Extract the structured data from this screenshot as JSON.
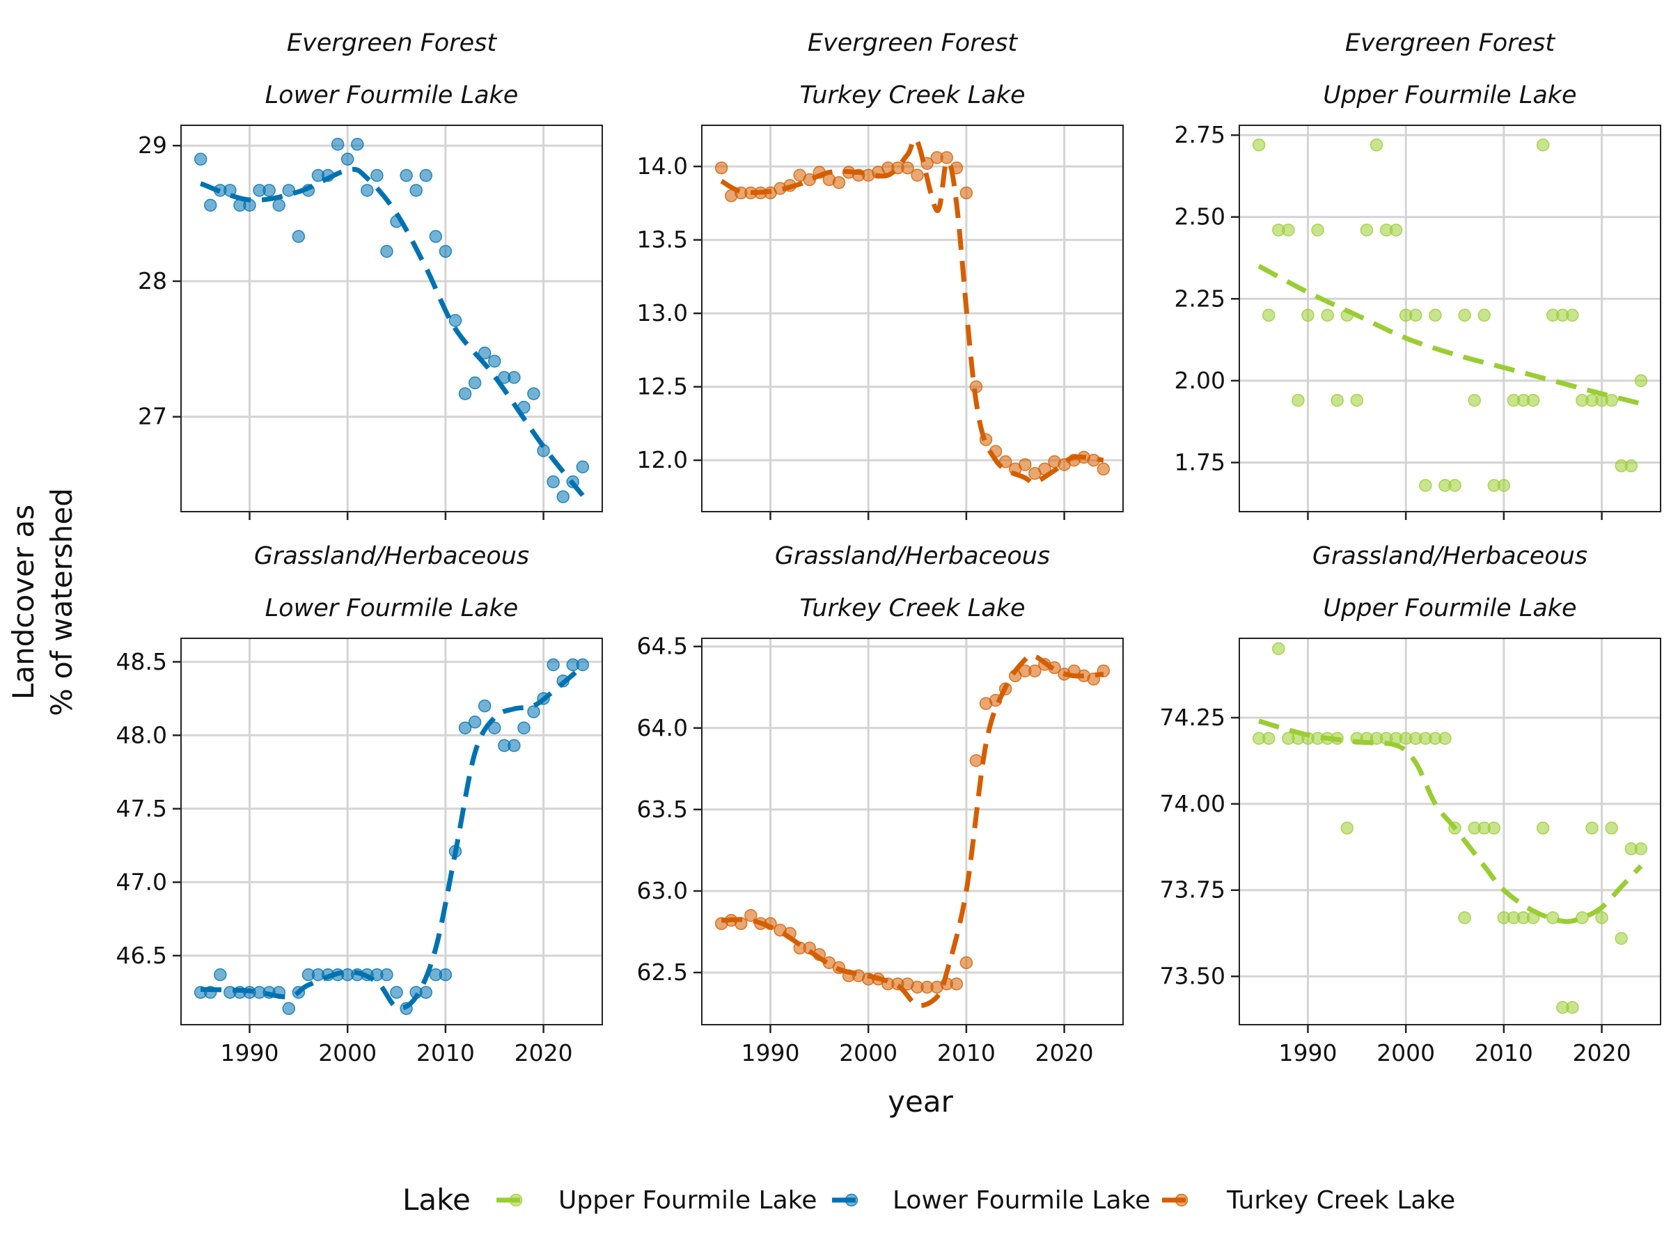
{
  "chart_data": {
    "type": "scatter",
    "layout": "facet grid 2 rows x 3 columns, shared x axis",
    "xlabel": "year",
    "ylabel": [
      "Landcover as",
      "% of watershed"
    ],
    "xlim": [
      1983,
      2026
    ],
    "xticks": [
      1990,
      2000,
      2010,
      2020
    ],
    "grid": true,
    "trend_style": "dashed smooth line",
    "legend": {
      "title": "Lake",
      "position": "bottom",
      "entries": [
        {
          "name": "Upper Fourmile Lake",
          "color": "#9acd32"
        },
        {
          "name": "Lower Fourmile Lake",
          "color": "#0072b2"
        },
        {
          "name": "Turkey Creek Lake",
          "color": "#d55e00"
        }
      ]
    },
    "panels": [
      {
        "landcover": "Evergreen Forest",
        "lake": "Lower Fourmile Lake",
        "color": "#0072b2",
        "ylim": [
          26.3,
          29.15
        ],
        "yticks": [
          27,
          28,
          29
        ],
        "ytick_labels": [
          "27",
          "28",
          "29"
        ],
        "x": [
          1985,
          1986,
          1987,
          1988,
          1989,
          1990,
          1991,
          1992,
          1993,
          1994,
          1995,
          1996,
          1997,
          1998,
          1999,
          2000,
          2001,
          2002,
          2003,
          2004,
          2005,
          2006,
          2007,
          2008,
          2009,
          2010,
          2011,
          2012,
          2013,
          2014,
          2015,
          2016,
          2017,
          2018,
          2019,
          2020,
          2021,
          2022,
          2023,
          2024
        ],
        "y": [
          28.9,
          28.56,
          28.67,
          28.67,
          28.56,
          28.56,
          28.67,
          28.67,
          28.56,
          28.67,
          28.33,
          28.67,
          28.78,
          28.78,
          29.01,
          28.9,
          29.01,
          28.67,
          28.78,
          28.22,
          28.44,
          28.78,
          28.67,
          28.78,
          28.33,
          28.22,
          27.71,
          27.17,
          27.25,
          27.47,
          27.41,
          27.29,
          27.29,
          27.07,
          27.17,
          26.75,
          26.52,
          26.41,
          26.52,
          26.63
        ],
        "trend": [
          [
            1985,
            28.72
          ],
          [
            1990,
            28.6
          ],
          [
            1995,
            28.66
          ],
          [
            2000,
            28.82
          ],
          [
            2002,
            28.76
          ],
          [
            2005,
            28.5
          ],
          [
            2008,
            28.1
          ],
          [
            2011,
            27.65
          ],
          [
            2015,
            27.3
          ],
          [
            2020,
            26.78
          ],
          [
            2024,
            26.42
          ]
        ]
      },
      {
        "landcover": "Evergreen Forest",
        "lake": "Turkey Creek Lake",
        "color": "#d55e00",
        "ylim": [
          11.65,
          14.28
        ],
        "yticks": [
          12.0,
          12.5,
          13.0,
          13.5,
          14.0
        ],
        "ytick_labels": [
          "12.0",
          "12.5",
          "13.0",
          "13.5",
          "14.0"
        ],
        "x": [
          1985,
          1986,
          1987,
          1988,
          1989,
          1990,
          1991,
          1992,
          1993,
          1994,
          1995,
          1996,
          1997,
          1998,
          1999,
          2000,
          2001,
          2002,
          2003,
          2004,
          2005,
          2006,
          2007,
          2008,
          2009,
          2010,
          2011,
          2012,
          2013,
          2014,
          2015,
          2016,
          2017,
          2018,
          2019,
          2020,
          2021,
          2022,
          2023,
          2024
        ],
        "y": [
          13.99,
          13.8,
          13.82,
          13.82,
          13.82,
          13.82,
          13.85,
          13.87,
          13.94,
          13.91,
          13.96,
          13.91,
          13.89,
          13.96,
          13.94,
          13.94,
          13.96,
          13.99,
          13.99,
          13.99,
          13.94,
          14.02,
          14.06,
          14.06,
          13.99,
          13.82,
          12.5,
          12.14,
          12.06,
          11.99,
          11.94,
          11.97,
          11.91,
          11.94,
          11.99,
          11.97,
          12.0,
          12.02,
          12.0,
          11.94
        ],
        "trend": [
          [
            1985,
            13.9
          ],
          [
            1987,
            13.83
          ],
          [
            1990,
            13.83
          ],
          [
            1993,
            13.88
          ],
          [
            1996,
            13.96
          ],
          [
            1999,
            13.96
          ],
          [
            2002,
            13.94
          ],
          [
            2004,
            14.08
          ],
          [
            2005,
            14.17
          ],
          [
            2007,
            13.7
          ],
          [
            2008,
            14.03
          ],
          [
            2009,
            13.75
          ],
          [
            2011,
            12.4
          ],
          [
            2013,
            12.0
          ],
          [
            2016,
            11.88
          ],
          [
            2017,
            11.85
          ],
          [
            2019,
            11.93
          ],
          [
            2021,
            12.02
          ],
          [
            2024,
            12.0
          ]
        ]
      },
      {
        "landcover": "Evergreen Forest",
        "lake": "Upper Fourmile Lake",
        "color": "#9acd32",
        "ylim": [
          1.6,
          2.78
        ],
        "yticks": [
          1.75,
          2.0,
          2.25,
          2.5,
          2.75
        ],
        "ytick_labels": [
          "1.75",
          "2.00",
          "2.25",
          "2.50",
          "2.75"
        ],
        "x": [
          1985,
          1986,
          1987,
          1988,
          1989,
          1990,
          1991,
          1992,
          1993,
          1994,
          1995,
          1996,
          1997,
          1998,
          1999,
          2000,
          2001,
          2002,
          2003,
          2004,
          2005,
          2006,
          2007,
          2008,
          2009,
          2010,
          2011,
          2012,
          2013,
          2014,
          2015,
          2016,
          2017,
          2018,
          2019,
          2020,
          2021,
          2022,
          2023,
          2024
        ],
        "y": [
          2.72,
          2.2,
          2.46,
          2.46,
          1.94,
          2.2,
          2.46,
          2.2,
          1.94,
          2.2,
          1.94,
          2.46,
          2.72,
          2.46,
          2.46,
          2.2,
          2.2,
          1.68,
          2.2,
          1.68,
          1.68,
          2.2,
          1.94,
          2.2,
          1.68,
          1.68,
          1.94,
          1.94,
          1.94,
          2.72,
          2.2,
          2.2,
          2.2,
          1.94,
          1.94,
          1.94,
          1.94,
          1.74,
          1.74,
          2.0
        ],
        "trend": [
          [
            1985,
            2.35
          ],
          [
            1990,
            2.27
          ],
          [
            1995,
            2.2
          ],
          [
            2000,
            2.13
          ],
          [
            2005,
            2.08
          ],
          [
            2010,
            2.04
          ],
          [
            2015,
            2.0
          ],
          [
            2020,
            1.96
          ],
          [
            2024,
            1.93
          ]
        ]
      },
      {
        "landcover": "Grassland/Herbaceous",
        "lake": "Lower Fourmile Lake",
        "color": "#0072b2",
        "ylim": [
          46.03,
          48.66
        ],
        "yticks": [
          46.5,
          47.0,
          47.5,
          48.0,
          48.5
        ],
        "ytick_labels": [
          "46.5",
          "47.0",
          "47.5",
          "48.0",
          "48.5"
        ],
        "x": [
          1985,
          1986,
          1987,
          1988,
          1989,
          1990,
          1991,
          1992,
          1993,
          1994,
          1995,
          1996,
          1997,
          1998,
          1999,
          2000,
          2001,
          2002,
          2003,
          2004,
          2005,
          2006,
          2007,
          2008,
          2009,
          2010,
          2011,
          2012,
          2013,
          2014,
          2015,
          2016,
          2017,
          2018,
          2019,
          2020,
          2021,
          2022,
          2023,
          2024
        ],
        "y": [
          46.25,
          46.25,
          46.37,
          46.25,
          46.25,
          46.25,
          46.25,
          46.25,
          46.25,
          46.14,
          46.25,
          46.37,
          46.37,
          46.37,
          46.37,
          46.37,
          46.37,
          46.37,
          46.37,
          46.37,
          46.25,
          46.14,
          46.25,
          46.25,
          46.37,
          46.37,
          47.21,
          48.05,
          48.09,
          48.2,
          48.05,
          47.93,
          47.93,
          48.05,
          48.16,
          48.25,
          48.48,
          48.37,
          48.48,
          48.48
        ],
        "trend": [
          [
            1985,
            46.27
          ],
          [
            1990,
            46.26
          ],
          [
            1994,
            46.22
          ],
          [
            1996,
            46.3
          ],
          [
            2000,
            46.39
          ],
          [
            2003,
            46.32
          ],
          [
            2005,
            46.15
          ],
          [
            2007,
            46.22
          ],
          [
            2009,
            46.55
          ],
          [
            2011,
            47.2
          ],
          [
            2013,
            47.88
          ],
          [
            2015,
            48.12
          ],
          [
            2017,
            48.18
          ],
          [
            2019,
            48.2
          ],
          [
            2021,
            48.3
          ],
          [
            2024,
            48.47
          ]
        ]
      },
      {
        "landcover": "Grassland/Herbaceous",
        "lake": "Turkey Creek Lake",
        "color": "#d55e00",
        "ylim": [
          62.18,
          64.55
        ],
        "yticks": [
          62.5,
          63.0,
          63.5,
          64.0,
          64.5
        ],
        "ytick_labels": [
          "62.5",
          "63.0",
          "63.5",
          "64.0",
          "64.5"
        ],
        "x": [
          1985,
          1986,
          1987,
          1988,
          1989,
          1990,
          1991,
          1992,
          1993,
          1994,
          1995,
          1996,
          1997,
          1998,
          1999,
          2000,
          2001,
          2002,
          2003,
          2004,
          2005,
          2006,
          2007,
          2008,
          2009,
          2010,
          2011,
          2012,
          2013,
          2014,
          2015,
          2016,
          2017,
          2018,
          2019,
          2020,
          2021,
          2022,
          2023,
          2024
        ],
        "y": [
          62.8,
          62.82,
          62.8,
          62.85,
          62.8,
          62.8,
          62.76,
          62.74,
          62.65,
          62.65,
          62.61,
          62.56,
          62.53,
          62.48,
          62.48,
          62.46,
          62.46,
          62.43,
          62.43,
          62.43,
          62.41,
          62.41,
          62.41,
          62.43,
          62.43,
          62.56,
          63.8,
          64.15,
          64.17,
          64.24,
          64.32,
          64.35,
          64.35,
          64.39,
          64.37,
          64.33,
          64.35,
          64.32,
          64.3,
          64.35
        ],
        "trend": [
          [
            1985,
            62.82
          ],
          [
            1988,
            62.82
          ],
          [
            1991,
            62.75
          ],
          [
            1994,
            62.63
          ],
          [
            1997,
            62.52
          ],
          [
            2000,
            62.48
          ],
          [
            2003,
            62.42
          ],
          [
            2005,
            62.3
          ],
          [
            2007,
            62.35
          ],
          [
            2008,
            62.5
          ],
          [
            2010,
            63.0
          ],
          [
            2012,
            63.9
          ],
          [
            2014,
            64.25
          ],
          [
            2016,
            64.42
          ],
          [
            2017,
            64.44
          ],
          [
            2019,
            64.36
          ],
          [
            2021,
            64.32
          ],
          [
            2024,
            64.33
          ]
        ]
      },
      {
        "landcover": "Grassland/Herbaceous",
        "lake": "Upper Fourmile Lake",
        "color": "#9acd32",
        "ylim": [
          73.36,
          74.48
        ],
        "yticks": [
          73.5,
          73.75,
          74.0,
          74.25
        ],
        "ytick_labels": [
          "73.50",
          "73.75",
          "74.00",
          "74.25"
        ],
        "x": [
          1985,
          1986,
          1987,
          1988,
          1989,
          1990,
          1991,
          1992,
          1993,
          1994,
          1995,
          1996,
          1997,
          1998,
          1999,
          2000,
          2001,
          2002,
          2003,
          2004,
          2005,
          2006,
          2007,
          2008,
          2009,
          2010,
          2011,
          2012,
          2013,
          2014,
          2015,
          2016,
          2017,
          2018,
          2019,
          2020,
          2021,
          2022,
          2023,
          2024
        ],
        "y": [
          74.19,
          74.19,
          74.45,
          74.19,
          74.19,
          74.19,
          74.19,
          74.19,
          74.19,
          73.93,
          74.19,
          74.19,
          74.19,
          74.19,
          74.19,
          74.19,
          74.19,
          74.19,
          74.19,
          74.19,
          73.93,
          73.67,
          73.93,
          73.93,
          73.93,
          73.67,
          73.67,
          73.67,
          73.67,
          73.93,
          73.67,
          73.41,
          73.41,
          73.67,
          73.93,
          73.67,
          73.93,
          73.61,
          73.87,
          73.87
        ],
        "trend": [
          [
            1985,
            74.24
          ],
          [
            1990,
            74.2
          ],
          [
            1995,
            74.18
          ],
          [
            1999,
            74.17
          ],
          [
            2001,
            74.12
          ],
          [
            2003,
            74.0
          ],
          [
            2005,
            73.93
          ],
          [
            2008,
            73.82
          ],
          [
            2010,
            73.75
          ],
          [
            2013,
            73.69
          ],
          [
            2016,
            73.66
          ],
          [
            2018,
            73.67
          ],
          [
            2020,
            73.7
          ],
          [
            2022,
            73.76
          ],
          [
            2024,
            73.82
          ]
        ]
      }
    ]
  }
}
